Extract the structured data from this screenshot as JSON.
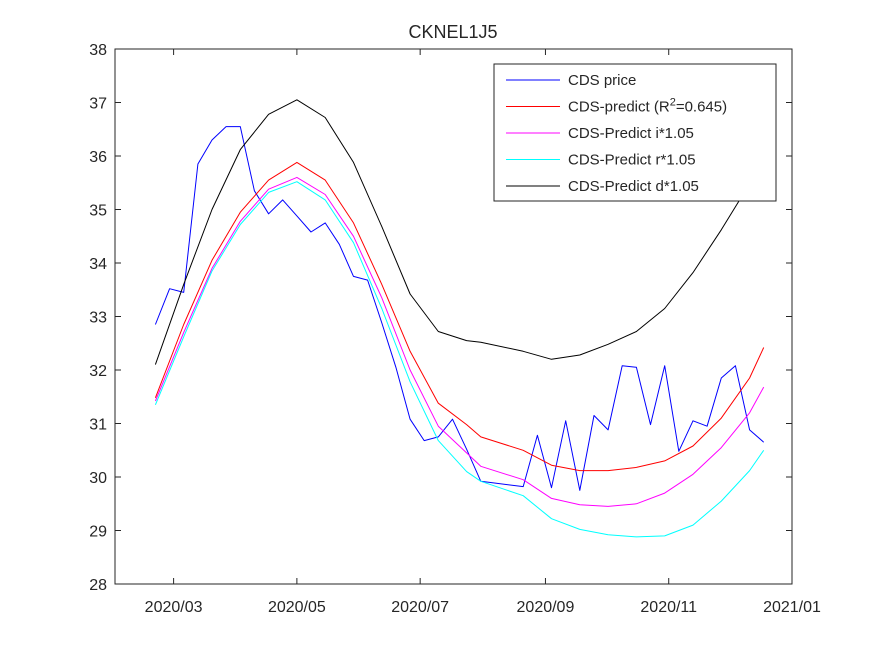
{
  "chart_data": {
    "type": "line",
    "title": "CKNEL1J5",
    "xlabel": "",
    "ylabel": "",
    "ylim": [
      28,
      38
    ],
    "xlim": [
      "2020-02-01",
      "2021-01-01"
    ],
    "grid": false,
    "legend_position": "top-right",
    "x_tick_labels": [
      "2020/03",
      "2020/05",
      "2020/07",
      "2020/09",
      "2020/11",
      "2021/01"
    ],
    "x_ticks": [
      "2020-03-01",
      "2020-05-01",
      "2020-07-01",
      "2020-09-01",
      "2020-11-01",
      "2021-01-01"
    ],
    "y_ticks": [
      28,
      29,
      30,
      31,
      32,
      33,
      34,
      35,
      36,
      37,
      38
    ],
    "y_tick_labels": [
      "28",
      "29",
      "30",
      "31",
      "32",
      "33",
      "34",
      "35",
      "36",
      "37",
      "38"
    ],
    "series": [
      {
        "name": "CDS price",
        "legend_main": "CDS price",
        "legend_sup": "",
        "legend_tail": "",
        "color": "#0000ff",
        "x": [
          "2020-02-21",
          "2020-02-28",
          "2020-03-06",
          "2020-03-13",
          "2020-03-20",
          "2020-03-27",
          "2020-04-03",
          "2020-04-10",
          "2020-04-17",
          "2020-04-24",
          "2020-05-01",
          "2020-05-08",
          "2020-05-15",
          "2020-05-22",
          "2020-05-29",
          "2020-06-05",
          "2020-06-12",
          "2020-06-19",
          "2020-06-26",
          "2020-07-03",
          "2020-07-10",
          "2020-07-17",
          "2020-07-24",
          "2020-07-31",
          "2020-08-21",
          "2020-08-28",
          "2020-09-04",
          "2020-09-11",
          "2020-09-18",
          "2020-09-25",
          "2020-10-02",
          "2020-10-09",
          "2020-10-16",
          "2020-10-23",
          "2020-10-30",
          "2020-11-06",
          "2020-11-13",
          "2020-11-20",
          "2020-11-27",
          "2020-12-04",
          "2020-12-11",
          "2020-12-18"
        ],
        "y": [
          32.85,
          33.52,
          33.45,
          35.85,
          36.3,
          36.55,
          36.55,
          35.35,
          34.92,
          35.18,
          34.88,
          34.58,
          34.75,
          34.35,
          33.75,
          33.68,
          32.88,
          32.05,
          31.08,
          30.68,
          30.75,
          31.08,
          30.52,
          29.92,
          29.82,
          30.78,
          29.8,
          31.05,
          29.75,
          31.15,
          30.88,
          32.08,
          32.05,
          30.98,
          32.08,
          30.48,
          31.05,
          30.95,
          31.85,
          32.08,
          30.88,
          30.65
        ]
      },
      {
        "name": "CDS-predict (R2=0.645)",
        "legend_main": "CDS-predict (R",
        "legend_sup": "2",
        "legend_tail": "=0.645)",
        "color": "#ff0000",
        "x": [
          "2020-02-21",
          "2020-03-06",
          "2020-03-20",
          "2020-04-03",
          "2020-04-17",
          "2020-05-01",
          "2020-05-15",
          "2020-05-29",
          "2020-06-12",
          "2020-06-26",
          "2020-07-10",
          "2020-07-24",
          "2020-07-31",
          "2020-08-21",
          "2020-09-04",
          "2020-09-18",
          "2020-10-02",
          "2020-10-16",
          "2020-10-30",
          "2020-11-13",
          "2020-11-27",
          "2020-12-11",
          "2020-12-18"
        ],
        "y": [
          31.48,
          32.85,
          34.05,
          34.95,
          35.55,
          35.88,
          35.55,
          34.75,
          33.6,
          32.35,
          31.38,
          30.98,
          30.75,
          30.5,
          30.22,
          30.12,
          30.12,
          30.18,
          30.3,
          30.58,
          31.1,
          31.85,
          32.42
        ]
      },
      {
        "name": "CDS-Predict i*1.05",
        "legend_main": "CDS-Predict i*1.05",
        "legend_sup": "",
        "legend_tail": "",
        "color": "#ff00ff",
        "x": [
          "2020-02-21",
          "2020-03-06",
          "2020-03-20",
          "2020-04-03",
          "2020-04-17",
          "2020-05-01",
          "2020-05-15",
          "2020-05-29",
          "2020-06-12",
          "2020-06-26",
          "2020-07-10",
          "2020-07-24",
          "2020-07-31",
          "2020-08-21",
          "2020-09-04",
          "2020-09-18",
          "2020-10-02",
          "2020-10-16",
          "2020-10-30",
          "2020-11-13",
          "2020-11-27",
          "2020-12-11",
          "2020-12-18"
        ],
        "y": [
          31.42,
          32.7,
          33.9,
          34.78,
          35.38,
          35.6,
          35.28,
          34.5,
          33.35,
          32.0,
          30.95,
          30.45,
          30.2,
          29.95,
          29.6,
          29.48,
          29.45,
          29.5,
          29.7,
          30.05,
          30.55,
          31.2,
          31.68
        ]
      },
      {
        "name": "CDS-Predict r*1.05",
        "legend_main": "CDS-Predict r*1.05",
        "legend_sup": "",
        "legend_tail": "",
        "color": "#00ffff",
        "x": [
          "2020-02-21",
          "2020-03-06",
          "2020-03-20",
          "2020-04-03",
          "2020-04-17",
          "2020-05-01",
          "2020-05-15",
          "2020-05-29",
          "2020-06-12",
          "2020-06-26",
          "2020-07-10",
          "2020-07-24",
          "2020-07-31",
          "2020-08-21",
          "2020-09-04",
          "2020-09-18",
          "2020-10-02",
          "2020-10-16",
          "2020-10-30",
          "2020-11-13",
          "2020-11-27",
          "2020-12-11",
          "2020-12-18"
        ],
        "y": [
          31.35,
          32.62,
          33.85,
          34.72,
          35.32,
          35.52,
          35.18,
          34.38,
          33.15,
          31.78,
          30.68,
          30.1,
          29.92,
          29.65,
          29.22,
          29.02,
          28.92,
          28.88,
          28.9,
          29.1,
          29.55,
          30.12,
          30.5
        ]
      },
      {
        "name": "CDS-Predict d*1.05",
        "legend_main": "CDS-Predict d*1.05",
        "legend_sup": "",
        "legend_tail": "",
        "color": "#000000",
        "x": [
          "2020-02-21",
          "2020-03-06",
          "2020-03-20",
          "2020-04-03",
          "2020-04-17",
          "2020-05-01",
          "2020-05-15",
          "2020-05-29",
          "2020-06-12",
          "2020-06-26",
          "2020-07-10",
          "2020-07-24",
          "2020-07-31",
          "2020-08-21",
          "2020-09-04",
          "2020-09-18",
          "2020-10-02",
          "2020-10-16",
          "2020-10-30",
          "2020-11-13",
          "2020-11-27",
          "2020-12-11",
          "2020-12-18"
        ],
        "y": [
          32.1,
          33.6,
          35.0,
          36.12,
          36.78,
          37.05,
          36.72,
          35.88,
          34.68,
          33.42,
          32.72,
          32.55,
          32.52,
          32.35,
          32.2,
          32.28,
          32.48,
          32.72,
          33.15,
          33.82,
          34.62,
          35.48,
          36.0
        ]
      }
    ]
  }
}
